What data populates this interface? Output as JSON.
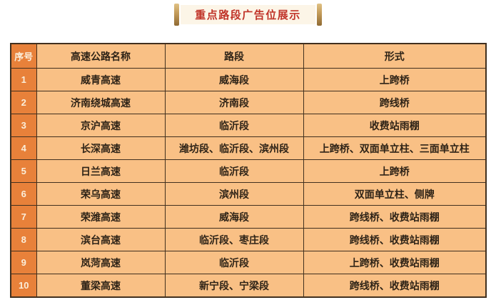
{
  "banner": {
    "title": "重点路段广告位展示"
  },
  "table": {
    "headers": {
      "no": "序号",
      "name": "高速公路名称",
      "section": "路段",
      "form": "形式"
    },
    "rows": [
      {
        "no": "1",
        "name": "威青高速",
        "section": "威海段",
        "form": "上跨桥"
      },
      {
        "no": "2",
        "name": "济南绕城高速",
        "section": "济南段",
        "form": "跨线桥"
      },
      {
        "no": "3",
        "name": "京沪高速",
        "section": "临沂段",
        "form": "收费站雨棚"
      },
      {
        "no": "4",
        "name": "长深高速",
        "section": "潍坊段、临沂段、滨州段",
        "form": "上跨桥、双面单立柱、三面单立柱"
      },
      {
        "no": "5",
        "name": "日兰高速",
        "section": "临沂段",
        "form": "上跨桥"
      },
      {
        "no": "6",
        "name": "荣乌高速",
        "section": "滨州段",
        "form": "双面单立柱、侧牌"
      },
      {
        "no": "7",
        "name": "荣潍高速",
        "section": "威海段",
        "form": "跨线桥、收费站雨棚"
      },
      {
        "no": "8",
        "name": "滨台高速",
        "section": "临沂段、枣庄段",
        "form": "跨线桥、收费站雨棚"
      },
      {
        "no": "9",
        "name": "岚菏高速",
        "section": "临沂段",
        "form": "上跨桥、收费站雨棚"
      },
      {
        "no": "10",
        "name": "董梁高速",
        "section": "新宁段、宁梁段",
        "form": "跨线桥、收费站雨棚"
      }
    ]
  },
  "colors": {
    "number_column_bg": "#e8813a",
    "cell_bg": "#f9c085",
    "table_border": "#41301f",
    "cell_text": "#2e2317",
    "number_text": "#fbeeda",
    "banner_bg": "#fcf5e7",
    "banner_text": "#c03328",
    "banner_bar_gold_top": "#e0c184",
    "banner_bar_gold_bottom": "#8f6a33",
    "page_bg": "#ffffff"
  }
}
